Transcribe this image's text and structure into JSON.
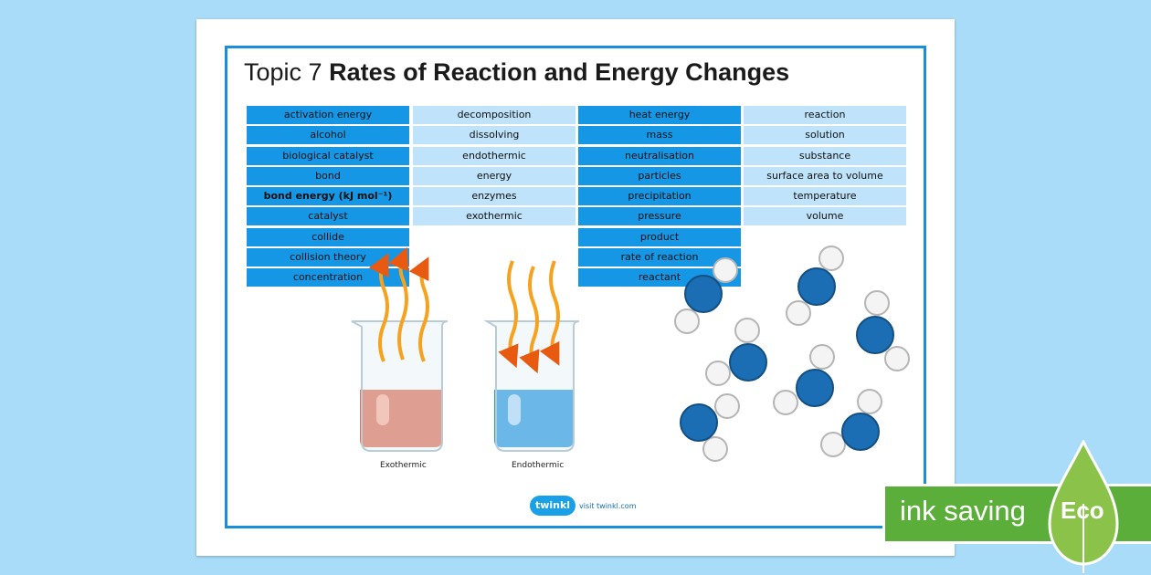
{
  "title": {
    "prefix": "Topic 7",
    "main": "Rates of Reaction and Energy Changes"
  },
  "columns": [
    [
      "activation energy",
      "alcohol",
      "biological catalyst",
      "bond",
      "bond energy (kJ mol⁻¹)",
      "catalyst",
      "collide",
      "collision theory",
      "concentration"
    ],
    [
      "decomposition",
      "dissolving",
      "endothermic",
      "energy",
      "enzymes",
      "exothermic"
    ],
    [
      "heat energy",
      "mass",
      "neutralisation",
      "particles",
      "precipitation",
      "pressure",
      "product",
      "rate of reaction",
      "reactant"
    ],
    [
      "reaction",
      "solution",
      "substance",
      "surface area to volume",
      "temperature",
      "volume"
    ]
  ],
  "captions": {
    "exothermic": "Exothermic",
    "endothermic": "Endothermic"
  },
  "footer": {
    "logo": "twinkl",
    "link": "visit twinkl.com"
  },
  "badge": {
    "text": "ink saving",
    "label": "Eco"
  },
  "colors": {
    "background": "#a9dcf8",
    "frame": "#1a8fd9",
    "cell_dark": "#1597e5",
    "cell_light": "#bfe3fa",
    "eco_green": "#5cae3a"
  }
}
